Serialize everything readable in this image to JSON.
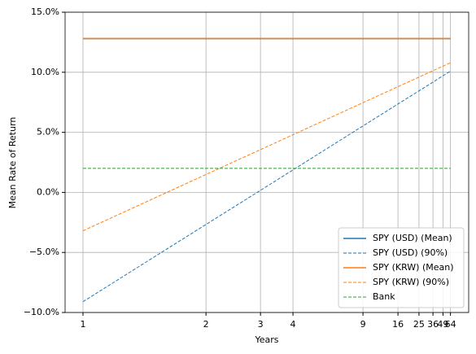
{
  "chart_data": {
    "type": "line",
    "x_label": "Years",
    "y_label": "Mean Rate of Return",
    "xscale": "reciprocal-sqrt",
    "x": [
      1,
      2,
      3,
      4,
      9,
      16,
      25,
      36,
      49,
      64
    ],
    "xlim": [
      0.92,
      150
    ],
    "xticks": [
      1,
      2,
      3,
      4,
      9,
      16,
      25,
      36,
      49,
      64
    ],
    "ylim": [
      -10,
      15
    ],
    "yticks": [
      {
        "value": -10,
        "label": "−10.0%"
      },
      {
        "value": -5,
        "label": "−5.0%"
      },
      {
        "value": 0,
        "label": "0.0%"
      },
      {
        "value": 5,
        "label": "5.0%"
      },
      {
        "value": 10,
        "label": "10.0%"
      },
      {
        "value": 15,
        "label": "15.0%"
      }
    ],
    "grid": true,
    "legend": "lower right",
    "series": [
      {
        "name": "SPY (USD) (Mean)",
        "color": "#1f77b4",
        "linestyle": "solid",
        "values": [
          12.8,
          12.8,
          12.8,
          12.8,
          12.8,
          12.8,
          12.8,
          12.8,
          12.8,
          12.8
        ]
      },
      {
        "name": "SPY (USD) (90%)",
        "color": "#1f77b4",
        "linestyle": "dashed",
        "values": [
          -9.1,
          -2.67,
          0.17,
          1.87,
          5.53,
          7.36,
          8.45,
          9.18,
          9.71,
          10.1
        ]
      },
      {
        "name": "SPY (KRW) (Mean)",
        "color": "#ff7f0e",
        "linestyle": "solid",
        "values": [
          12.8,
          12.8,
          12.8,
          12.8,
          12.8,
          12.8,
          12.8,
          12.8,
          12.8,
          12.8
        ]
      },
      {
        "name": "SPY (KRW) (90%)",
        "color": "#ff7f0e",
        "linestyle": "dashed",
        "values": [
          -3.2,
          1.49,
          3.56,
          4.8,
          7.47,
          8.8,
          9.6,
          10.13,
          10.51,
          10.8
        ]
      },
      {
        "name": "Bank",
        "color": "#2ca02c",
        "linestyle": "dashed",
        "values": [
          2,
          2,
          2,
          2,
          2,
          2,
          2,
          2,
          2,
          2
        ]
      }
    ]
  }
}
